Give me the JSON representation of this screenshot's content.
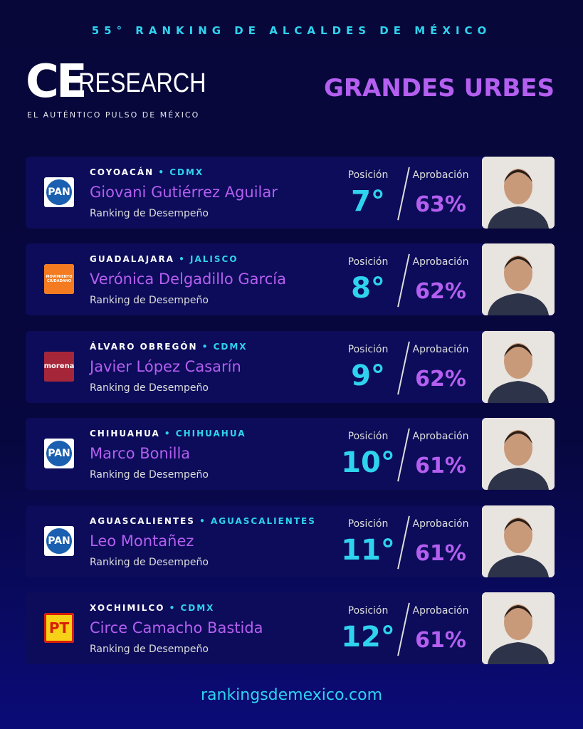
{
  "header": {
    "edition": "55° RANKING DE ALCALDES DE MÉXICO",
    "logo_ce": "CE",
    "logo_research": "RESEARCH",
    "tagline": "EL AUTÉNTICO PULSO DE MÉXICO",
    "section": "GRANDES URBES"
  },
  "labels": {
    "subtitle": "Ranking de Desempeño",
    "position": "Posición",
    "approval": "Aprobación"
  },
  "cards": [
    {
      "municipality": "COYOACÁN",
      "state": "CDMX",
      "name": "Giovani Gutiérrez Aguilar",
      "position": "7°",
      "approval": "63%",
      "party": "PAN",
      "party_kind": "pan"
    },
    {
      "municipality": "GUADALAJARA",
      "state": "JALISCO",
      "name": "Verónica Delgadillo García",
      "position": "8°",
      "approval": "62%",
      "party": "MOVIMIENTO CIUDADANO",
      "party_kind": "mc"
    },
    {
      "municipality": "ÁLVARO OBREGÓN",
      "state": "CDMX",
      "name": "Javier López Casarín",
      "position": "9°",
      "approval": "62%",
      "party": "morena",
      "party_kind": "morena"
    },
    {
      "municipality": "CHIHUAHUA",
      "state": "CHIHUAHUA",
      "name": "Marco Bonilla",
      "position": "10°",
      "approval": "61%",
      "party": "PAN",
      "party_kind": "pan"
    },
    {
      "municipality": "AGUASCALIENTES",
      "state": "AGUASCALIENTES",
      "name": "Leo Montañez",
      "position": "11°",
      "approval": "61%",
      "party": "PAN",
      "party_kind": "pan"
    },
    {
      "municipality": "XOCHIMILCO",
      "state": "CDMX",
      "name": "Circe Camacho Bastida",
      "position": "12°",
      "approval": "61%",
      "party": "PT",
      "party_kind": "pt"
    }
  ],
  "footer": {
    "url": "rankingsdemexico.com"
  }
}
